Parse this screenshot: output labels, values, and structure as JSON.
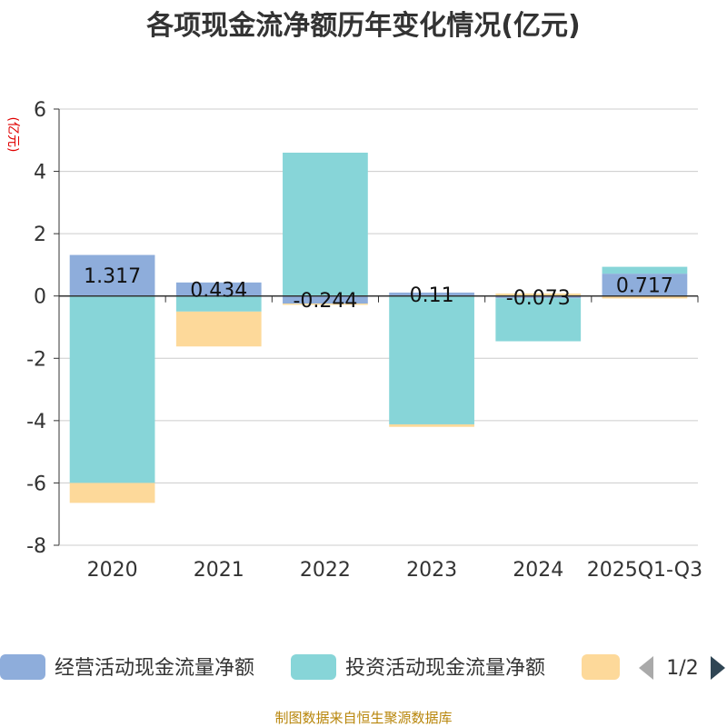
{
  "chart_data": {
    "type": "bar",
    "stacked": true,
    "title": "各项现金流净额历年变化情况(亿元)",
    "ylabel": "(亿元)",
    "xlabel": "",
    "ylim": [
      -8,
      6
    ],
    "yticks": [
      6,
      4,
      2,
      0,
      -2,
      -4,
      -6,
      -8
    ],
    "categories": [
      "2020",
      "2021",
      "2022",
      "2023",
      "2024",
      "2025Q1-Q3"
    ],
    "series": [
      {
        "name": "经营活动现金流量净额",
        "color": "#8eaddb",
        "values": [
          1.317,
          0.434,
          -0.244,
          0.11,
          -0.073,
          0.717
        ],
        "labels": [
          "1.317",
          "0.434",
          "-0.244",
          "0.11",
          "-0.073",
          "0.717"
        ]
      },
      {
        "name": "投资活动现金流量净额",
        "color": "#87d5d8",
        "values": [
          -6.0,
          -0.5,
          4.6,
          -4.12,
          -1.38,
          0.22
        ]
      },
      {
        "name": "",
        "color": "#fdd99a",
        "values": [
          -0.64,
          -1.12,
          -0.04,
          -0.08,
          0.08,
          -0.08
        ]
      }
    ],
    "gridlines": true,
    "legend_position": "bottom"
  },
  "legend": {
    "items": [
      {
        "label": "经营活动现金流量净额",
        "color": "#8eaddb"
      },
      {
        "label": "投资活动现金流量净额",
        "color": "#87d5d8"
      },
      {
        "label": "",
        "color": "#fdd99a"
      }
    ],
    "page_indicator": "1/2",
    "prev_color": "#aaaaaa",
    "next_color": "#2f4554"
  },
  "source": "制图数据来自恒生聚源数据库"
}
